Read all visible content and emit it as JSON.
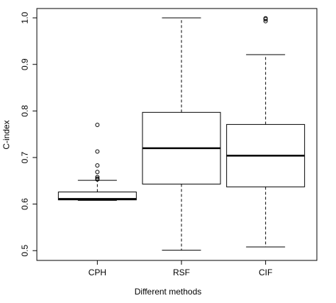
{
  "chart_data": {
    "type": "box",
    "xlabel": "Different methods",
    "ylabel": "C-index",
    "categories": [
      "CPH",
      "RSF",
      "CIF"
    ],
    "boxes": [
      {
        "min": 0.608,
        "q1": 0.609,
        "median": 0.611,
        "q3": 0.626,
        "max": 0.651,
        "outliers": [
          0.77,
          0.713,
          0.683,
          0.669,
          0.658,
          0.655,
          0.653
        ]
      },
      {
        "min": 0.501,
        "q1": 0.643,
        "median": 0.72,
        "q3": 0.797,
        "max": 1.0,
        "outliers": []
      },
      {
        "min": 0.508,
        "q1": 0.637,
        "median": 0.704,
        "q3": 0.771,
        "max": 0.921,
        "outliers": [
          0.999,
          0.997,
          0.993
        ]
      }
    ],
    "color": "#000000",
    "ylim": [
      0.479,
      1.02
    ],
    "yticks": [
      0.5,
      0.6,
      0.7,
      0.8,
      0.9,
      {
        "value": 1,
        "label": "1.0"
      }
    ]
  }
}
